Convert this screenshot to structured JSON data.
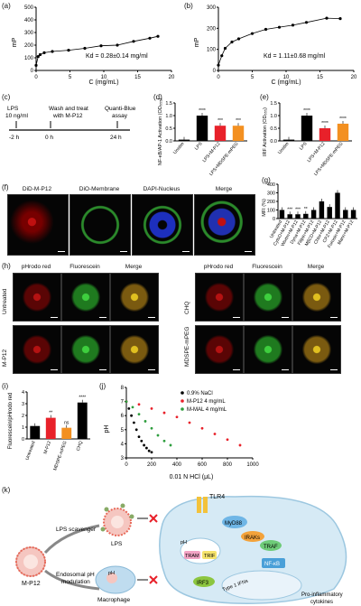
{
  "panels": {
    "a": "(a)",
    "b": "(b)",
    "c": "(c)",
    "d": "(d)",
    "e": "(e)",
    "f": "(f)",
    "g": "(g)",
    "h": "(h)",
    "i": "(i)",
    "j": "(j)",
    "k": "(k)"
  },
  "charts": {
    "a": {
      "ylabel": "mP",
      "xlabel": "C (mg/mL)",
      "kd": "Kd = 0.28±0.14 mg/ml",
      "yticks": [
        "0",
        "100",
        "200",
        "300",
        "400",
        "500"
      ],
      "xticks": [
        "0",
        "5",
        "10",
        "15",
        "20"
      ]
    },
    "b": {
      "ylabel": "mP",
      "xlabel": "C (mg/mL)",
      "kd": "Kd = 1.11±0.68 mg/ml",
      "yticks": [
        "0",
        "100",
        "200",
        "300"
      ],
      "xticks": [
        "0",
        "5",
        "10",
        "15",
        "20"
      ]
    },
    "d": {
      "ylabel": "NF-κB/AP-1 Activation (OD₆₅₅)",
      "sig": [
        "****",
        "***",
        "***"
      ],
      "yticks": [
        "0.0",
        "0.5",
        "1.0",
        "1.5"
      ],
      "categories": [
        "Unstim",
        "LPS",
        "LPS+M-P12",
        "LPS+MDSPE-mPEG"
      ]
    },
    "e": {
      "ylabel": "IRF Activation (OD₆₅₅)",
      "sig": [
        "****",
        "****",
        "****",
        "*"
      ],
      "yticks": [
        "0.0",
        "0.5",
        "1.0",
        "1.5"
      ],
      "categories": [
        "Unstim",
        "LPS",
        "LPS+M-P12",
        "LPS+MDSPE-mPEG"
      ]
    },
    "g": {
      "ylabel": "MFI (%)",
      "yticks": [
        "0",
        "100",
        "200",
        "300",
        "400"
      ],
      "sig": [
        "***",
        "***",
        "**"
      ],
      "categories": [
        "Untreated",
        "CytoD+M-P12",
        "Wortm+M-P12",
        "Dyna+M-P12",
        "Filipin+M-P12",
        "MβCD+M-P12",
        "Chlor+M-P12",
        "CPZ+M-P12",
        "Furosin+M-P12",
        "Mann+M-P12"
      ]
    },
    "i": {
      "ylabel": "Fluorescein/pHrodo red",
      "yticks": [
        "0",
        "1",
        "2",
        "3",
        "4"
      ],
      "sig": [
        "**",
        "ns",
        "****"
      ],
      "categories": [
        "Untreated",
        "M-P12",
        "MDSPE-mPEG",
        "CHQ"
      ]
    },
    "j": {
      "ylabel": "pH",
      "xlabel": "0.01 N HCl (μL)",
      "yticks": [
        "3",
        "4",
        "5",
        "6",
        "7",
        "8"
      ],
      "xticks": [
        "0",
        "200",
        "400",
        "600",
        "800",
        "1000"
      ],
      "legend": [
        "0.9% NaCl",
        "M-P12 4 mg/mL",
        "M-MAL 4 mg/mL"
      ]
    }
  },
  "timeline": {
    "lps": "LPS",
    "lps_conc": "10 ng/ml",
    "t1": "-2 h",
    "wash": "Wash and treat",
    "wash2": "with M-P12",
    "t2": "0 h",
    "assay": "Quanti-Blue",
    "assay2": "assay",
    "t3": "24 h"
  },
  "f_headers": [
    "DiD-M-P12",
    "DiO-Membrane",
    "DAPI-Nucleus",
    "Merge"
  ],
  "h_headers": [
    "pHrodo red",
    "Fluorescein",
    "Merge",
    "pHrodo red",
    "Fluorescein",
    "Merge"
  ],
  "h_rows": [
    "Untreated",
    "M-P12",
    "CHQ",
    "MDSPE-mPEG"
  ],
  "schematic": {
    "mp12": "M-P12",
    "lps_scav": "LPS scavenger",
    "lps": "LPS",
    "endo1": "Endosomal pH",
    "endo2": "modulation",
    "ph": "pH",
    "macro": "Macrophage",
    "tlr4": "TLR4",
    "myd88": "MyD88",
    "irak": "IRAKs",
    "traf": "TRAF",
    "tram": "TRAM",
    "trif": "TRIF",
    "nfkb": "NF-κB",
    "irf3": "IRF3",
    "ifn": "Type 1 IFNs",
    "cyto1": "Pro-inflammatory",
    "cyto2": "cytokines"
  },
  "chart_data": [
    {
      "type": "scatter",
      "title": "",
      "xlabel": "C (mg/mL)",
      "ylabel": "mP",
      "xlim": [
        0,
        20
      ],
      "ylim": [
        0,
        500
      ],
      "x": [
        0,
        0.3,
        0.6,
        1.2,
        2.4,
        4.8,
        7.2,
        9.6,
        12,
        14.4,
        16.8,
        18
      ],
      "values": [
        40,
        110,
        125,
        140,
        150,
        160,
        175,
        195,
        200,
        230,
        255,
        270
      ]
    },
    {
      "type": "scatter",
      "title": "",
      "xlabel": "C (mg/mL)",
      "ylabel": "mP",
      "xlim": [
        0,
        20
      ],
      "ylim": [
        0,
        300
      ],
      "x": [
        0,
        0.5,
        1,
        2,
        3,
        5,
        7,
        9,
        11,
        13,
        16,
        18
      ],
      "values": [
        25,
        70,
        105,
        135,
        150,
        175,
        195,
        205,
        215,
        228,
        248,
        246
      ]
    },
    {
      "type": "bar",
      "title": "",
      "ylabel": "NF-κB/AP-1 Activation (OD655)",
      "ylim": [
        0,
        1.5
      ],
      "categories": [
        "Unstim",
        "LPS",
        "LPS+M-P12",
        "LPS+MDSPE-mPEG"
      ],
      "values": [
        0.05,
        1.0,
        0.6,
        0.6
      ]
    },
    {
      "type": "bar",
      "title": "",
      "ylabel": "IRF Activation (OD655)",
      "ylim": [
        0,
        1.5
      ],
      "categories": [
        "Unstim",
        "LPS",
        "LPS+M-P12",
        "LPS+MDSPE-mPEG"
      ],
      "values": [
        0.05,
        1.0,
        0.5,
        0.68
      ]
    },
    {
      "type": "bar",
      "title": "",
      "ylabel": "MFI (%)",
      "ylim": [
        0,
        400
      ],
      "categories": [
        "Untreated",
        "CytoD+M-P12",
        "Wortm+M-P12",
        "Dyna+M-P12",
        "Filipin+M-P12",
        "MβCD+M-P12",
        "Chlor+M-P12",
        "CPZ+M-P12",
        "Furosin+M-P12",
        "Mann+M-P12"
      ],
      "values": [
        100,
        50,
        50,
        55,
        100,
        200,
        135,
        300,
        100,
        100
      ]
    },
    {
      "type": "bar",
      "title": "",
      "ylabel": "Fluorescein/pHrodo red",
      "ylim": [
        0,
        4
      ],
      "categories": [
        "Untreated",
        "M-P12",
        "MDSPE-mPEG",
        "CHQ"
      ],
      "values": [
        1.1,
        1.8,
        0.95,
        3.1
      ]
    },
    {
      "type": "line",
      "title": "",
      "xlabel": "0.01 N HCl (μL)",
      "ylabel": "pH",
      "xlim": [
        0,
        1000
      ],
      "ylim": [
        3,
        8
      ],
      "series": [
        {
          "name": "0.9% NaCl",
          "x": [
            0,
            20,
            40,
            60,
            80,
            100,
            120,
            140,
            160,
            180,
            200
          ],
          "values": [
            7,
            6.5,
            6.0,
            5.5,
            5.0,
            4.5,
            4.2,
            3.9,
            3.7,
            3.5,
            3.4
          ]
        },
        {
          "name": "M-P12 4 mg/mL",
          "x": [
            0,
            100,
            200,
            300,
            400,
            500,
            600,
            700,
            800,
            900
          ],
          "values": [
            7,
            6.8,
            6.5,
            6.2,
            5.9,
            5.5,
            5.1,
            4.7,
            4.3,
            3.9
          ]
        },
        {
          "name": "M-MAL 4 mg/mL",
          "x": [
            0,
            50,
            100,
            150,
            200,
            250,
            300,
            350
          ],
          "values": [
            7,
            6.6,
            6.1,
            5.6,
            5.1,
            4.6,
            4.2,
            3.9
          ]
        }
      ]
    }
  ],
  "colors": {
    "red": "#e8212a",
    "orange": "#f39021",
    "black": "#000000",
    "green": "#2e9e3e",
    "myd": "#6fb6e6",
    "tram": "#f2a3c4",
    "trif": "#f5e36b",
    "irak": "#f3a23a",
    "traf": "#6ecb78",
    "nfkb": "#4aa0d8",
    "irf": "#8cc63f"
  }
}
